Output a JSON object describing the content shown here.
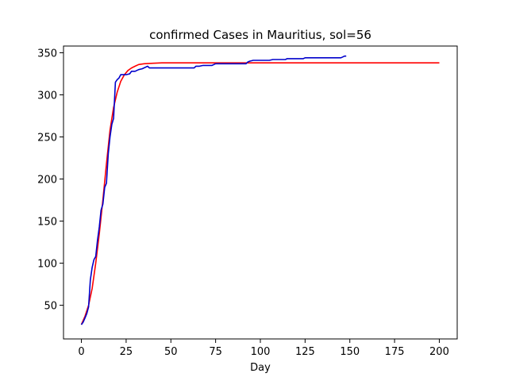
{
  "chart_data": {
    "type": "line",
    "title": "confirmed Cases in Mauritius, sol=56",
    "xlabel": "Day",
    "ylabel": "",
    "xlim": [
      -10,
      210
    ],
    "ylim": [
      10,
      358
    ],
    "xticks": [
      0,
      25,
      50,
      75,
      100,
      125,
      150,
      175,
      200
    ],
    "yticks": [
      50,
      100,
      150,
      200,
      250,
      300,
      350
    ],
    "grid": false,
    "series": [
      {
        "color": "#ff0000",
        "x": [
          0,
          2,
          4,
          6,
          8,
          10,
          12,
          14,
          16,
          18,
          20,
          22,
          24,
          26,
          28,
          30,
          32,
          35,
          40,
          45,
          50,
          100,
          150,
          200
        ],
        "y": [
          27,
          37,
          50,
          70,
          100,
          135,
          175,
          218,
          258,
          285,
          303,
          316,
          324,
          329,
          332,
          334,
          336,
          337,
          337.5,
          338,
          338,
          338,
          338,
          338
        ]
      },
      {
        "color": "#0000cc",
        "x": [
          0,
          1,
          2,
          3,
          4,
          5,
          6,
          7,
          8,
          9,
          10,
          11,
          12,
          13,
          14,
          15,
          16,
          17,
          18,
          19,
          20,
          21,
          22,
          23,
          25,
          27,
          28,
          30,
          32,
          34,
          36,
          37,
          38,
          40,
          45,
          50,
          55,
          60,
          63,
          64,
          66,
          68,
          70,
          73,
          75,
          80,
          85,
          90,
          92,
          93,
          94,
          96,
          100,
          105,
          107,
          110,
          114,
          115,
          118,
          120,
          124,
          125,
          130,
          135,
          140,
          145,
          146,
          147,
          148
        ],
        "y": [
          27,
          30,
          35,
          40,
          48,
          80,
          95,
          104,
          108,
          127,
          143,
          163,
          170,
          190,
          195,
          230,
          250,
          265,
          272,
          315,
          318,
          320,
          324,
          324,
          324,
          325,
          328,
          328,
          330,
          331,
          333,
          334,
          332,
          332,
          332,
          332,
          332,
          332,
          332,
          334,
          334,
          335,
          335,
          335,
          337,
          337,
          337,
          337,
          337,
          339,
          340,
          341,
          341,
          341,
          342,
          342,
          342,
          343,
          343,
          343,
          343,
          344,
          344,
          344,
          344,
          344,
          345,
          346,
          346
        ]
      }
    ]
  }
}
